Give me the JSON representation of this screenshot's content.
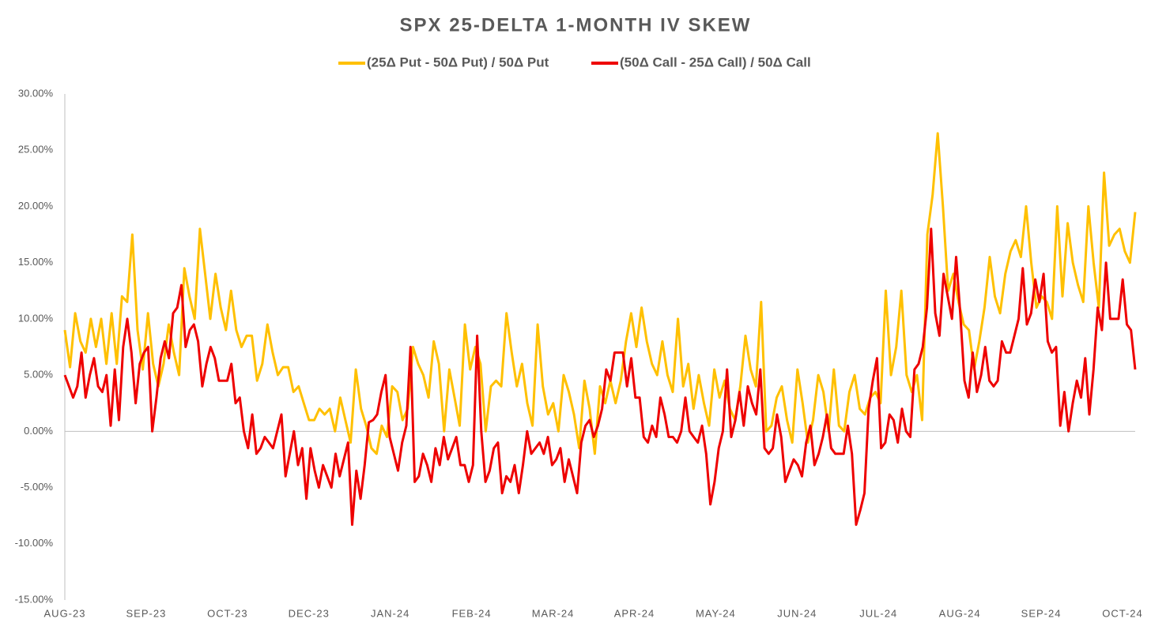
{
  "chart_data": {
    "type": "line",
    "title": "SPX 25-DELTA 1-MONTH IV SKEW",
    "x_labels": [
      "AUG-23",
      "SEP-23",
      "OCT-23",
      "DEC-23",
      "JAN-24",
      "FEB-24",
      "MAR-24",
      "APR-24",
      "MAY-24",
      "JUN-24",
      "JUL-24",
      "AUG-24",
      "SEP-24",
      "OCT-24"
    ],
    "ylim": [
      -15,
      30
    ],
    "yticks": [
      {
        "value": -15,
        "label": "-15.00%"
      },
      {
        "value": -10,
        "label": "-10.00%"
      },
      {
        "value": -5,
        "label": "-5.00%"
      },
      {
        "value": 0,
        "label": "0.00%"
      },
      {
        "value": 5,
        "label": "5.00%"
      },
      {
        "value": 10,
        "label": "10.00%"
      },
      {
        "value": 15,
        "label": "15.00%"
      },
      {
        "value": 20,
        "label": "20.00%"
      },
      {
        "value": 25,
        "label": "25.00%"
      },
      {
        "value": 30,
        "label": "30.00%"
      }
    ],
    "series": [
      {
        "name": "(25Δ Put - 50Δ Put) / 50Δ Put",
        "color": "#FFC000",
        "values": [
          9,
          5.7,
          10.5,
          8,
          7,
          10,
          7.5,
          10,
          6,
          10.5,
          6,
          12,
          11.5,
          17.5,
          9,
          5.5,
          10.5,
          6,
          4,
          6,
          9.5,
          7,
          5,
          14.5,
          12,
          10,
          18,
          14,
          10,
          14,
          11,
          9,
          12.5,
          9,
          7.5,
          8.5,
          8.5,
          4.5,
          6,
          9.5,
          7,
          5,
          5.7,
          5.7,
          3.5,
          4,
          2.5,
          1,
          1,
          2,
          1.5,
          2,
          0,
          3,
          1,
          -1,
          5.5,
          2,
          0.5,
          -1.5,
          -2,
          0.5,
          -0.5,
          4,
          3.5,
          1,
          2,
          7.5,
          6,
          5,
          3,
          8,
          6,
          0,
          5.5,
          3,
          0.5,
          9.5,
          5.5,
          7.5,
          6,
          0,
          4,
          4.5,
          4,
          10.5,
          7,
          4,
          6,
          2.5,
          0.5,
          9.5,
          4,
          1.5,
          2.5,
          0,
          5,
          3.5,
          1.5,
          -1.5,
          4.5,
          2,
          -2,
          4,
          2.5,
          4.5,
          2.5,
          4.5,
          8,
          10.5,
          7.5,
          11,
          8,
          6,
          5,
          8,
          5,
          3.5,
          10,
          4,
          6,
          2,
          5,
          2.5,
          0.5,
          5.5,
          3,
          4.5,
          2,
          1,
          4,
          8.5,
          5.5,
          4,
          11.5,
          0,
          0.5,
          3,
          4,
          1,
          -1,
          5.5,
          2.5,
          -1,
          1,
          5,
          3.5,
          0,
          5.5,
          0.5,
          0,
          3.5,
          5,
          2,
          1.5,
          3,
          3.5,
          2.5,
          12.5,
          5,
          7.5,
          12.5,
          5,
          3.5,
          5,
          1,
          17.5,
          21,
          26.5,
          20,
          12.5,
          14,
          11.5,
          9.5,
          9,
          5.5,
          8,
          11,
          15.5,
          12,
          10.5,
          14,
          16,
          17,
          15.5,
          20,
          15,
          11,
          12,
          11.5,
          10,
          20,
          12,
          18.5,
          15,
          13,
          11.5,
          20,
          15,
          11,
          23,
          16.5,
          17.5,
          18,
          16,
          15,
          19.5
        ]
      },
      {
        "name": "(50Δ Call - 25Δ Call) / 50Δ Call",
        "color": "#EE0000",
        "values": [
          5,
          4,
          3,
          4,
          7,
          3,
          5,
          6.5,
          4,
          3.5,
          5,
          0.5,
          5.5,
          1,
          7.5,
          10,
          7,
          2.5,
          6,
          7,
          7.5,
          0,
          3,
          6.5,
          8,
          6.5,
          10.5,
          11,
          13,
          7.5,
          9,
          9.5,
          8,
          4,
          6,
          7.5,
          6.5,
          4.5,
          4.5,
          4.5,
          6,
          2.5,
          3,
          0,
          -1.5,
          1.5,
          -2,
          -1.5,
          -0.5,
          -1,
          -1.5,
          0,
          1.5,
          -4,
          -2,
          0,
          -3,
          -1.5,
          -6,
          -1.5,
          -3.5,
          -5,
          -3,
          -4,
          -5,
          -2,
          -4,
          -2.5,
          -1,
          -8.3,
          -3.5,
          -6,
          -3,
          0.8,
          1,
          1.5,
          3.5,
          5,
          -0.5,
          -2,
          -3.5,
          -1,
          0.5,
          7.5,
          -4.5,
          -4,
          -2,
          -3,
          -4.5,
          -1.5,
          -3,
          -0.5,
          -2.5,
          -1.5,
          -0.5,
          -3,
          -3,
          -4.5,
          -3,
          8.5,
          0,
          -4.5,
          -3.5,
          -1.5,
          -1,
          -5.5,
          -4,
          -4.5,
          -3,
          -5.5,
          -3,
          0,
          -2,
          -1.5,
          -1,
          -2,
          -0.5,
          -3,
          -2.5,
          -1.5,
          -4.5,
          -2.5,
          -4,
          -5.5,
          -1,
          0.5,
          1,
          -0.5,
          0.5,
          2,
          5.5,
          4.5,
          7,
          7,
          7,
          4,
          6.5,
          3,
          3,
          -0.5,
          -1,
          0.5,
          -0.5,
          3,
          1.5,
          -0.5,
          -0.5,
          -1,
          0,
          3,
          0,
          -0.5,
          -1,
          0.5,
          -2,
          -6.5,
          -4.5,
          -1.5,
          0,
          5.5,
          -0.5,
          1,
          3.5,
          0.5,
          4,
          2.5,
          1.5,
          5.5,
          -1.5,
          -2,
          -1.5,
          1.5,
          -0.5,
          -4.5,
          -3.5,
          -2.5,
          -3,
          -4,
          -1,
          0.5,
          -3,
          -2,
          -0.5,
          1.5,
          -1.5,
          -2,
          -2,
          -2,
          0.5,
          -2,
          -8.3,
          -7,
          -5.5,
          2,
          4.5,
          6.5,
          -1.5,
          -1,
          1.5,
          1,
          -1,
          2,
          0,
          -0.5,
          5.5,
          6,
          7.5,
          11,
          18,
          10.5,
          8.5,
          14,
          12,
          10,
          15.5,
          10.5,
          4.5,
          3,
          7,
          3.5,
          5,
          7.5,
          4.5,
          4,
          4.5,
          8,
          7,
          7,
          8.5,
          10,
          14.5,
          9.5,
          10.5,
          13.5,
          11.5,
          14,
          8,
          7,
          7.5,
          0.5,
          3.5,
          0,
          2.5,
          4.5,
          3,
          6.5,
          1.5,
          5.5,
          11,
          9,
          15,
          10,
          10,
          10,
          13.5,
          9.5,
          9,
          5.5
        ]
      }
    ]
  }
}
